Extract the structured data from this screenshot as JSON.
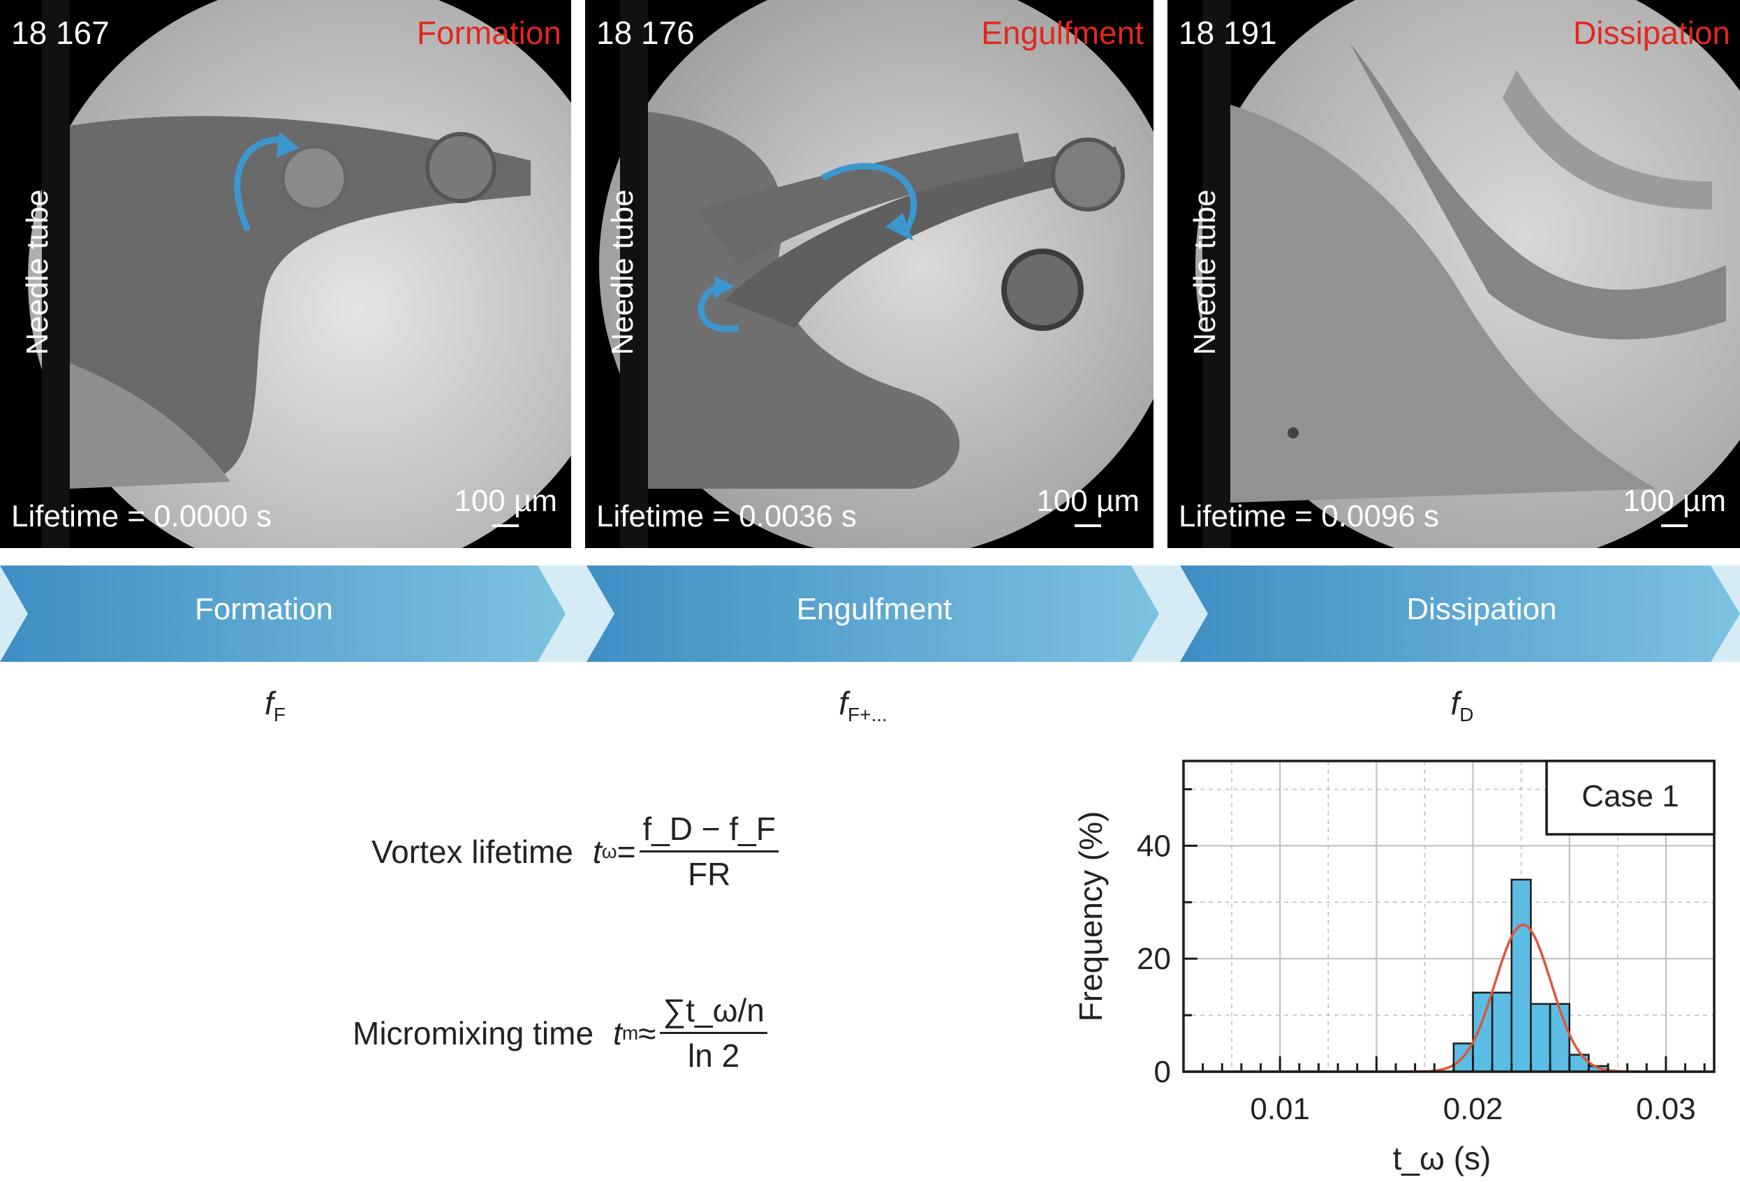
{
  "panels": [
    {
      "frame": "18 167",
      "phase": "Formation",
      "needle_label": "Needle tube",
      "lifetime": "Lifetime = 0.0000 s",
      "scale": "100 µm"
    },
    {
      "frame": "18 176",
      "phase": "Engulfment",
      "needle_label": "Needle tube",
      "lifetime": "Lifetime = 0.0036 s",
      "scale": "100 µm"
    },
    {
      "frame": "18 191",
      "phase": "Dissipation",
      "needle_label": "Needle tube",
      "lifetime": "Lifetime = 0.0096 s",
      "scale": "100 µm"
    }
  ],
  "stages": [
    "Formation",
    "Engulfment",
    "Dissipation"
  ],
  "frame_symbols": [
    {
      "f": "f",
      "sub": "F"
    },
    {
      "f": "f",
      "sub": "F+..."
    },
    {
      "f": "f",
      "sub": "D"
    }
  ],
  "equations": {
    "vortex": {
      "label": "Vortex lifetime",
      "lhs": "t",
      "lhs_sub": "ω",
      "op": "=",
      "num": "f_D − f_F",
      "den": "FR"
    },
    "micromix": {
      "label": "Micromixing time",
      "lhs": "t",
      "lhs_sub": "m",
      "op": "≈",
      "num": "∑t_ω/n",
      "den": "ln 2"
    }
  },
  "colors": {
    "phase_text": "#e3261d",
    "arrow_dark": "#3f8ec4",
    "arrow_light": "#7cc2e0",
    "bar_fill": "#5bbce4",
    "fit_line": "#e0553a",
    "swirl": "#3d97cf"
  },
  "chart_data": {
    "type": "bar",
    "legend_box": "Case 1",
    "xlabel": "t_ω (s)",
    "ylabel": "Frequency (%)",
    "xlim": [
      0.005,
      0.0325
    ],
    "ylim": [
      0,
      55
    ],
    "xticks": [
      0.01,
      0.02,
      0.03
    ],
    "xtick_labels": [
      "0.01",
      "0.02",
      "0.03"
    ],
    "yticks": [
      0,
      20,
      40
    ],
    "ytick_labels": [
      "0",
      "20",
      "40"
    ],
    "bin_width": 0.001,
    "bins": [
      {
        "x0": 0.019,
        "value": 5
      },
      {
        "x0": 0.02,
        "value": 14
      },
      {
        "x0": 0.021,
        "value": 14
      },
      {
        "x0": 0.022,
        "value": 34
      },
      {
        "x0": 0.023,
        "value": 12
      },
      {
        "x0": 0.024,
        "value": 12
      },
      {
        "x0": 0.025,
        "value": 3
      },
      {
        "x0": 0.026,
        "value": 1
      }
    ],
    "fit": {
      "type": "gaussian",
      "mean": 0.0226,
      "sd": 0.00145,
      "peak": 26
    },
    "grid": true
  }
}
